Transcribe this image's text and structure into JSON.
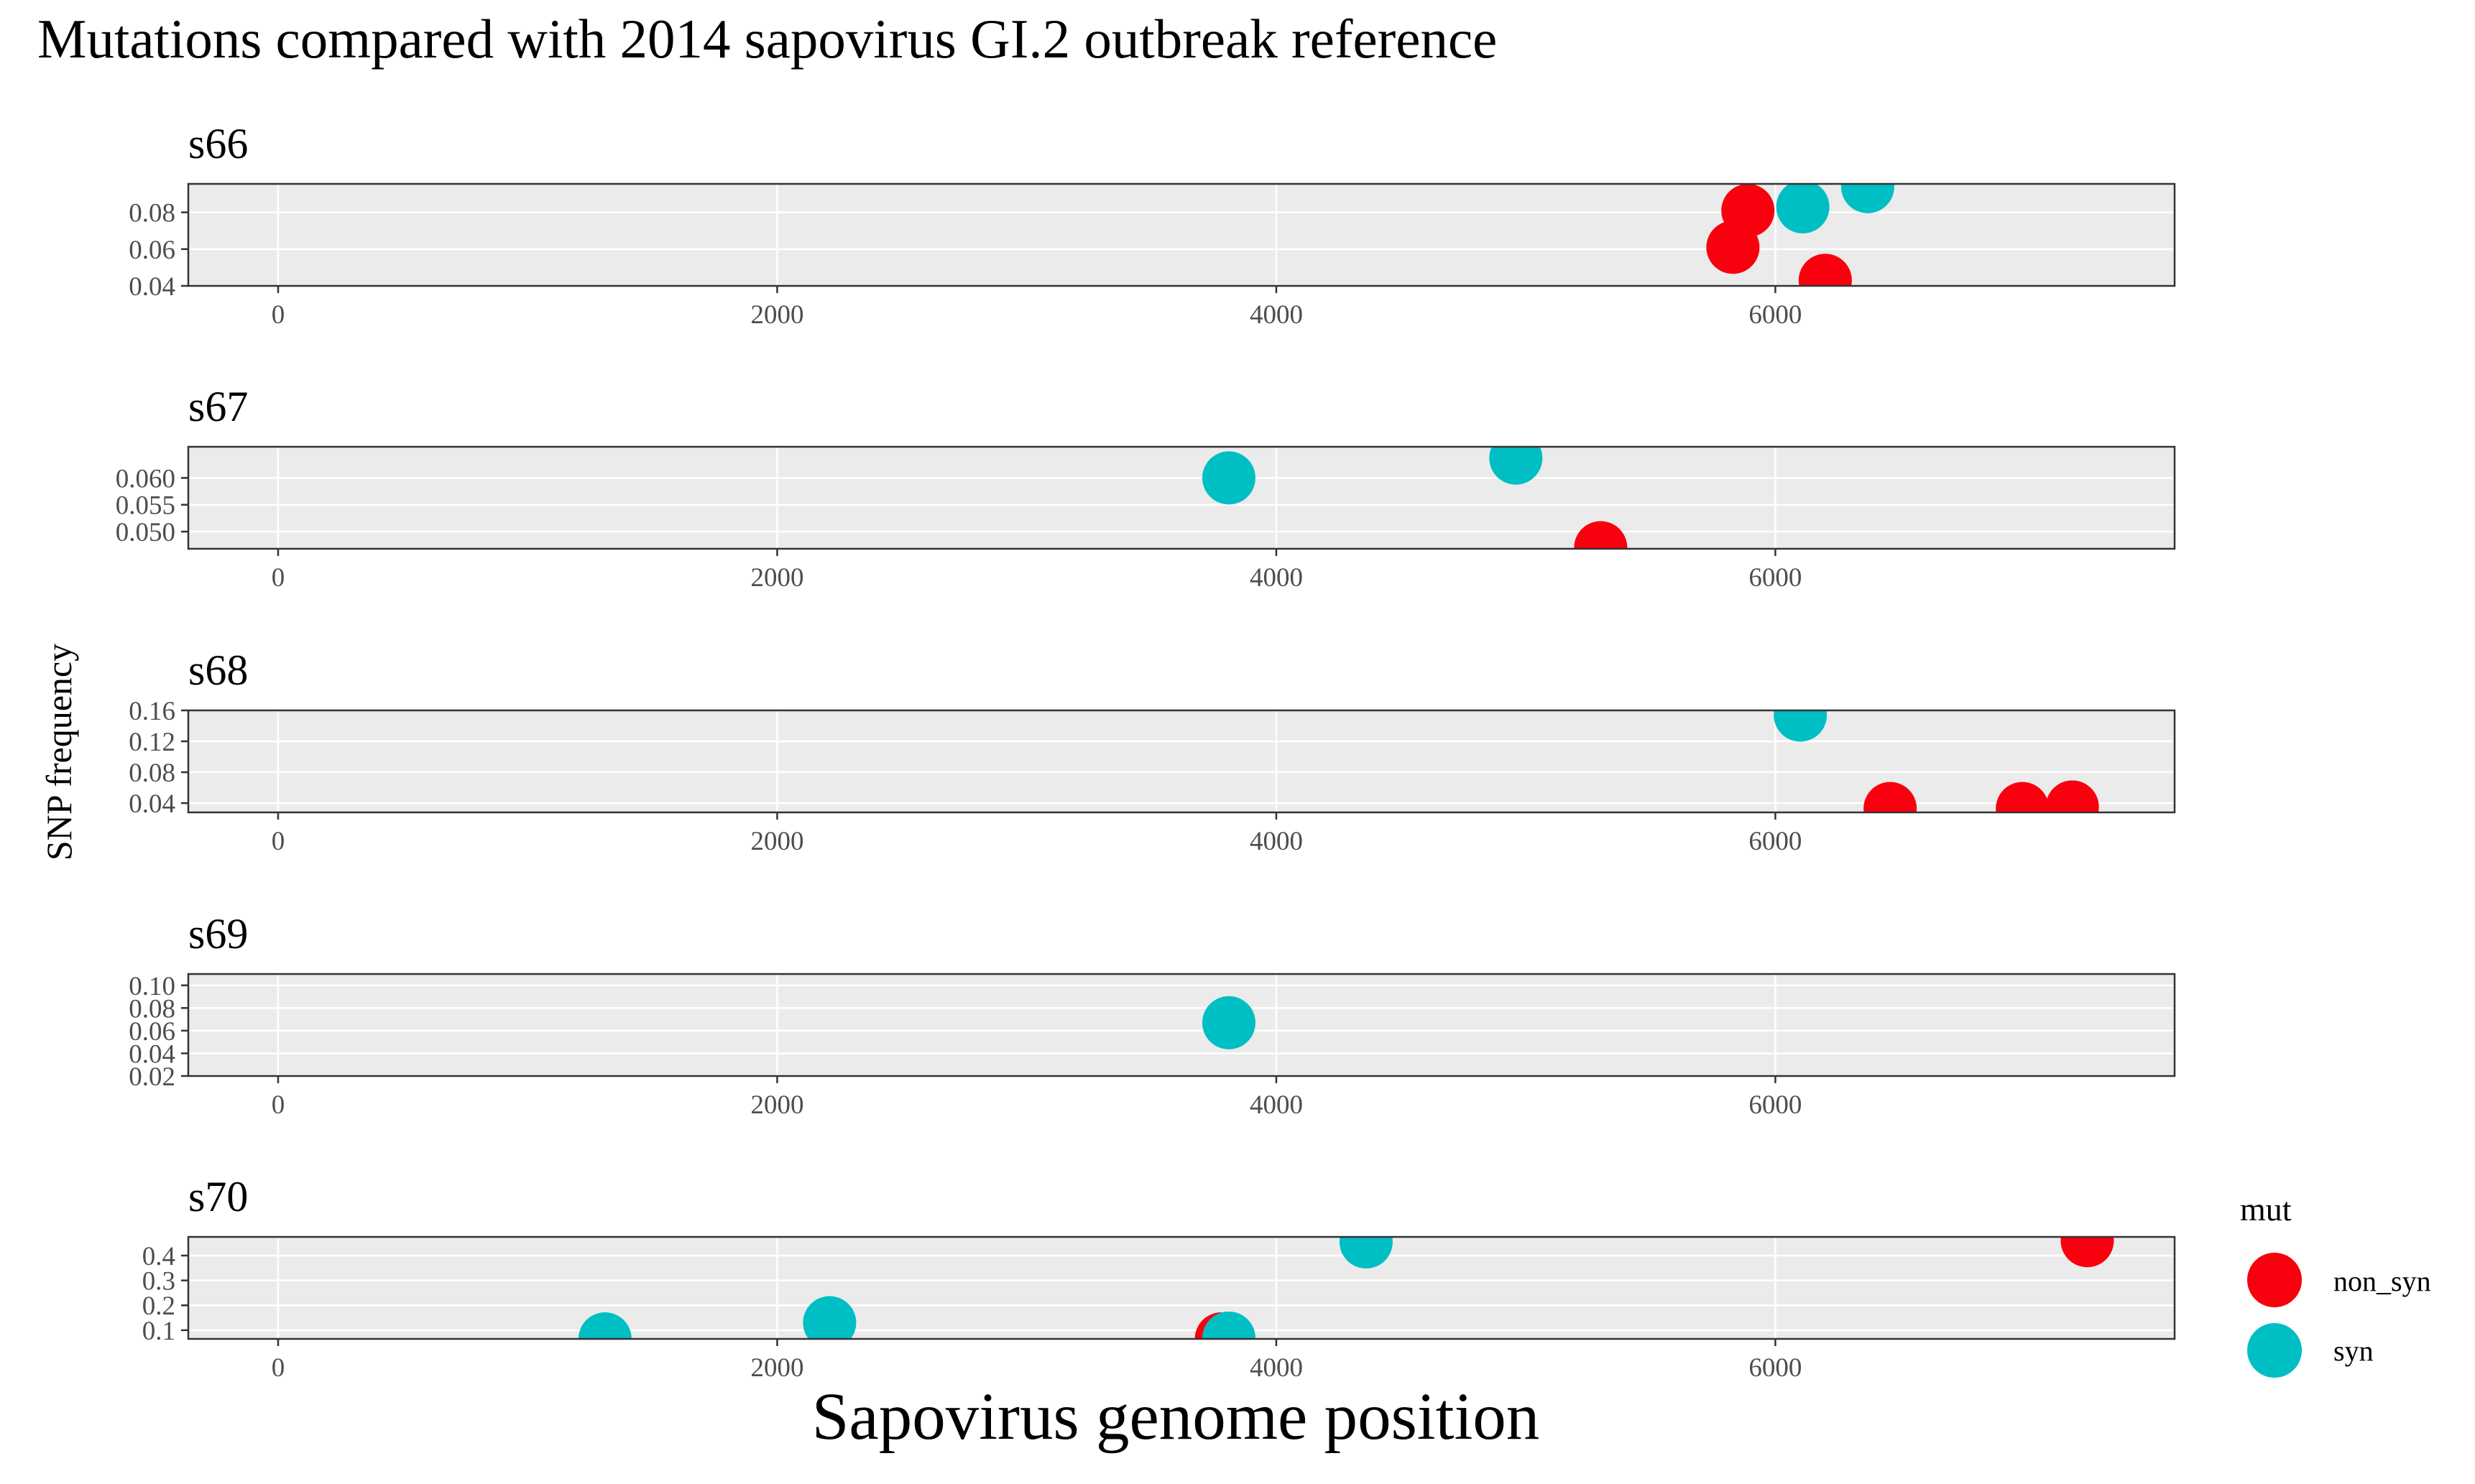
{
  "chart_data": {
    "type": "scatter",
    "title": "Mutations compared with 2014 sapovirus GI.2 outbreak reference",
    "xlabel": "Sapovirus genome position",
    "ylabel": "SNP frequency",
    "xlim": [
      -360,
      7600
    ],
    "x_ticks": [
      0,
      2000,
      4000,
      6000
    ],
    "grid": true,
    "legend": {
      "title": "mut",
      "position": "right",
      "entries": [
        {
          "key": "non_syn",
          "label": "non_syn",
          "color": "#F8000D"
        },
        {
          "key": "syn",
          "label": "syn",
          "color": "#00BFC4"
        }
      ]
    },
    "panels": [
      {
        "name": "s66",
        "ylim": [
          0.04,
          0.0955
        ],
        "y_ticks": [
          0.04,
          0.06,
          0.08
        ],
        "tick_decimals": 2,
        "points": [
          {
            "x": 5830,
            "y": 0.061,
            "mut": "non_syn"
          },
          {
            "x": 5890,
            "y": 0.081,
            "mut": "non_syn"
          },
          {
            "x": 6200,
            "y": 0.043,
            "mut": "non_syn"
          },
          {
            "x": 6110,
            "y": 0.083,
            "mut": "syn"
          },
          {
            "x": 6370,
            "y": 0.094,
            "mut": "syn"
          }
        ]
      },
      {
        "name": "s67",
        "ylim": [
          0.0468,
          0.0658
        ],
        "y_ticks": [
          0.05,
          0.055,
          0.06
        ],
        "tick_decimals": 3,
        "points": [
          {
            "x": 3810,
            "y": 0.06,
            "mut": "syn"
          },
          {
            "x": 4960,
            "y": 0.0637,
            "mut": "syn"
          },
          {
            "x": 5300,
            "y": 0.047,
            "mut": "non_syn"
          }
        ]
      },
      {
        "name": "s68",
        "ylim": [
          0.028,
          0.16
        ],
        "y_ticks": [
          0.04,
          0.08,
          0.12,
          0.16
        ],
        "tick_decimals": 2,
        "points": [
          {
            "x": 6100,
            "y": 0.154,
            "mut": "syn"
          },
          {
            "x": 6460,
            "y": 0.033,
            "mut": "non_syn"
          },
          {
            "x": 6990,
            "y": 0.033,
            "mut": "non_syn"
          },
          {
            "x": 7190,
            "y": 0.035,
            "mut": "non_syn"
          }
        ]
      },
      {
        "name": "s69",
        "ylim": [
          0.02,
          0.11
        ],
        "y_ticks": [
          0.02,
          0.04,
          0.06,
          0.08,
          0.1
        ],
        "tick_decimals": 2,
        "points": [
          {
            "x": 3810,
            "y": 0.067,
            "mut": "syn"
          }
        ]
      },
      {
        "name": "s70",
        "ylim": [
          0.065,
          0.475
        ],
        "y_ticks": [
          0.1,
          0.2,
          0.3,
          0.4
        ],
        "tick_decimals": 1,
        "points": [
          {
            "x": 3780,
            "y": 0.065,
            "mut": "non_syn"
          },
          {
            "x": 7250,
            "y": 0.46,
            "mut": "non_syn"
          },
          {
            "x": 1310,
            "y": 0.065,
            "mut": "syn"
          },
          {
            "x": 2210,
            "y": 0.13,
            "mut": "syn"
          },
          {
            "x": 3810,
            "y": 0.068,
            "mut": "syn"
          },
          {
            "x": 4360,
            "y": 0.455,
            "mut": "syn"
          }
        ]
      }
    ]
  }
}
